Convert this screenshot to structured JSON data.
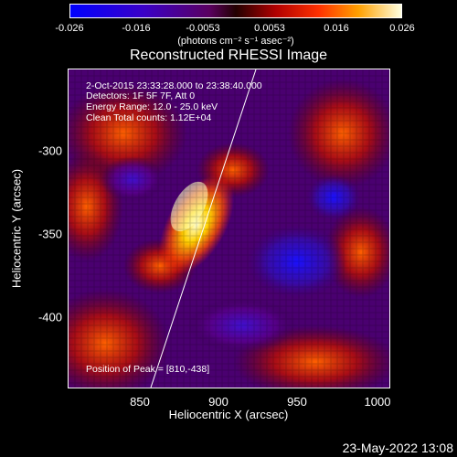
{
  "colorbar": {
    "ticks": [
      "-0.026",
      "-0.016",
      "-0.0053",
      "0.0053",
      "0.016",
      "0.026"
    ],
    "units": "(photons cm⁻² s⁻¹ asec⁻²)"
  },
  "title": "Reconstructed RHESSI Image",
  "info": {
    "time": "2-Oct-2015 23:33:28.000 to 23:38:40.000",
    "detectors": "Detectors: 1F 5F 7F, Att 0",
    "energy": "Energy Range: 12.0 - 25.0 keV",
    "clean": "Clean    Total counts: 1.12E+04"
  },
  "peak": "Position of Peak = [810,-438]",
  "axes": {
    "xlabel": "Heliocentric X (arcsec)",
    "ylabel": "Heliocentric Y (arcsec)",
    "xticks": [
      "850",
      "900",
      "950",
      "1000"
    ],
    "yticks": [
      "-300",
      "-350",
      "-400"
    ]
  },
  "datestamp": "23-May-2022 13:08",
  "colors": {
    "background": "#000000",
    "text": "#ffffff"
  }
}
